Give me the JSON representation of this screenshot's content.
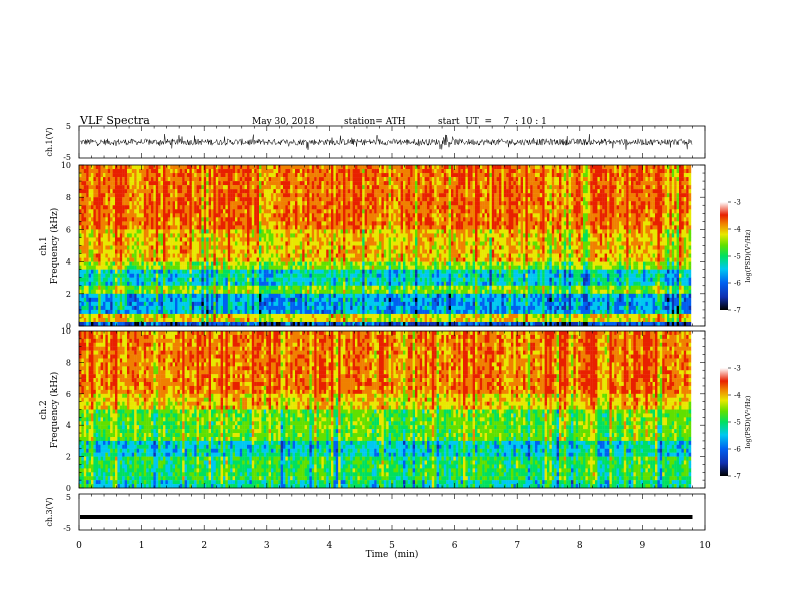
{
  "header": {
    "title": "VLF Spectra",
    "date": "May 30, 2018",
    "station": "station= ATH",
    "start": "start  UT  =    7  : 10 : 1"
  },
  "chart_data": [
    {
      "type": "line",
      "panel": "waveform",
      "ylabel": "ch.1(V)",
      "ylim": [
        -5,
        5
      ],
      "y_ticks": [
        "5",
        "-5"
      ],
      "x_range": [
        0,
        10
      ],
      "data_extent_min": 9.8,
      "series_note": "noisy broadband waveform about 0 V",
      "amplitude_typical": 1.0,
      "amplitude_peak": 2.5
    },
    {
      "type": "heatmap",
      "panel": "spectrogram",
      "ylabel_line1": "ch.1",
      "ylabel_line2": "Frequency  (kHz)",
      "ylim": [
        0,
        10
      ],
      "y_ticks": [
        "10",
        "8",
        "6",
        "4",
        "2",
        "0"
      ],
      "x_range": [
        0,
        10
      ],
      "data_extent_min": 9.8,
      "colorbar": {
        "label": "log(PSD)(V²/Hz)",
        "range": [
          -7,
          -3
        ],
        "ticks": [
          "-3",
          "-4",
          "-5",
          "-6",
          "-7"
        ]
      }
    },
    {
      "type": "heatmap",
      "panel": "spectrogram",
      "ylabel_line1": "ch.2",
      "ylabel_line2": "Frequency  (kHz)",
      "ylim": [
        0,
        10
      ],
      "y_ticks": [
        "10",
        "8",
        "6",
        "4",
        "2",
        "0"
      ],
      "x_range": [
        0,
        10
      ],
      "data_extent_min": 9.8,
      "colorbar": {
        "label": "log(PSD)(V²/Hz)",
        "range": [
          -7,
          -3
        ],
        "ticks": [
          "-3",
          "-4",
          "-5",
          "-6",
          "-7"
        ]
      }
    },
    {
      "type": "line",
      "panel": "waveform",
      "ylabel": "ch.3(V)",
      "ylim": [
        -5,
        5
      ],
      "y_ticks": [
        "5",
        "-5"
      ],
      "x_range": [
        0,
        10
      ],
      "data_extent_min": 9.8,
      "series_note": "near-flat trace at about -1.4 V",
      "level": -1.4
    }
  ],
  "x_axis": {
    "label": "Time  (min)",
    "ticks": [
      "0",
      "1",
      "2",
      "3",
      "4",
      "5",
      "6",
      "7",
      "8",
      "9",
      "10"
    ]
  },
  "colors": {
    "colormap": [
      "#000000",
      "#1030b0",
      "#0060f0",
      "#00c8f0",
      "#00e060",
      "#60e000",
      "#e8e800",
      "#f08000",
      "#e82000",
      "#ffffff"
    ]
  }
}
